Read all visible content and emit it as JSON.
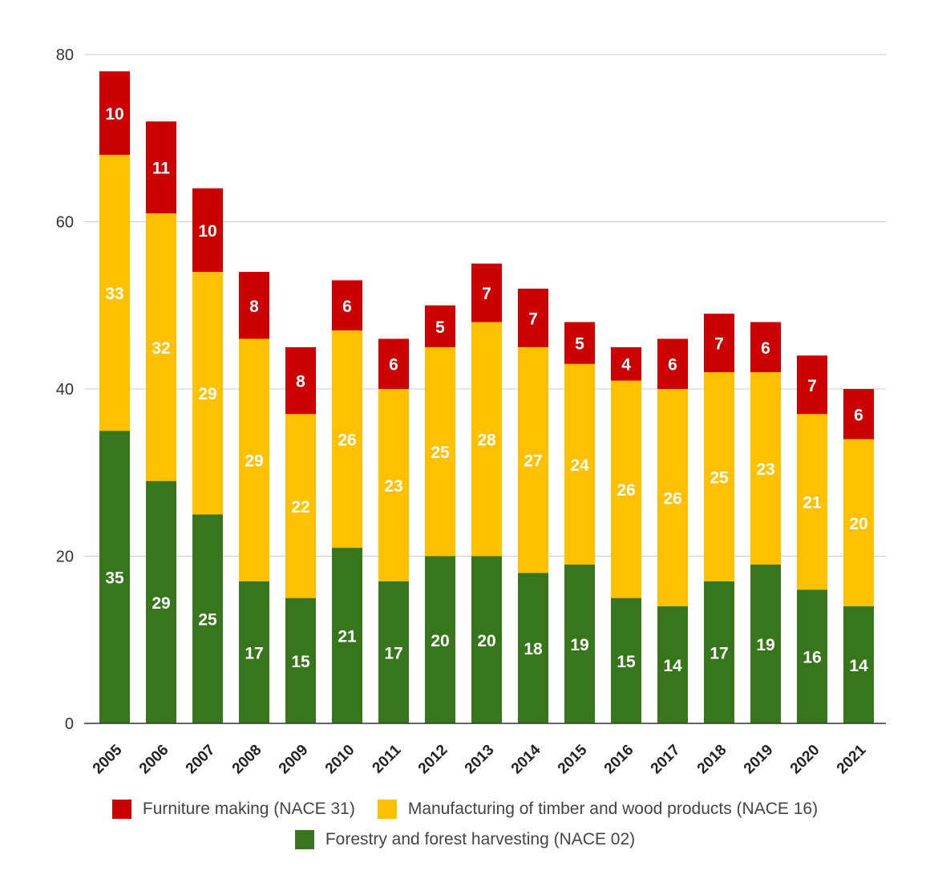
{
  "chart_data": {
    "type": "bar",
    "stacked": true,
    "categories": [
      "2005",
      "2006",
      "2007",
      "2008",
      "2009",
      "2010",
      "2011",
      "2012",
      "2013",
      "2014",
      "2015",
      "2016",
      "2017",
      "2018",
      "2019",
      "2020",
      "2021"
    ],
    "series": [
      {
        "name": "Forestry and forest harvesting (NACE 02)",
        "color": "#38761d",
        "values": [
          35,
          29,
          25,
          17,
          15,
          21,
          17,
          20,
          20,
          18,
          19,
          15,
          14,
          17,
          19,
          16,
          14
        ]
      },
      {
        "name": "Manufacturing of timber and wood products (NACE 16)",
        "color": "#ffc000",
        "values": [
          33,
          32,
          29,
          29,
          22,
          26,
          23,
          25,
          28,
          27,
          24,
          26,
          26,
          25,
          23,
          21,
          20
        ]
      },
      {
        "name": "Furniture making (NACE 31)",
        "color": "#cc0000",
        "values": [
          10,
          11,
          10,
          8,
          8,
          6,
          6,
          5,
          7,
          7,
          5,
          4,
          6,
          7,
          6,
          7,
          6
        ]
      }
    ],
    "yticks": [
      "0",
      "20",
      "40",
      "60",
      "80"
    ],
    "ylim": [
      0,
      80
    ],
    "grid": true,
    "legend_position": "bottom",
    "data_labels": true
  },
  "legend": {
    "row1": [
      {
        "label": "Furniture making (NACE 31)",
        "color": "#cc0000"
      },
      {
        "label": "Manufacturing of timber and wood products (NACE 16)",
        "color": "#ffc000"
      }
    ],
    "row2": [
      {
        "label": "Forestry and forest harvesting (NACE 02)",
        "color": "#38761d"
      }
    ]
  }
}
